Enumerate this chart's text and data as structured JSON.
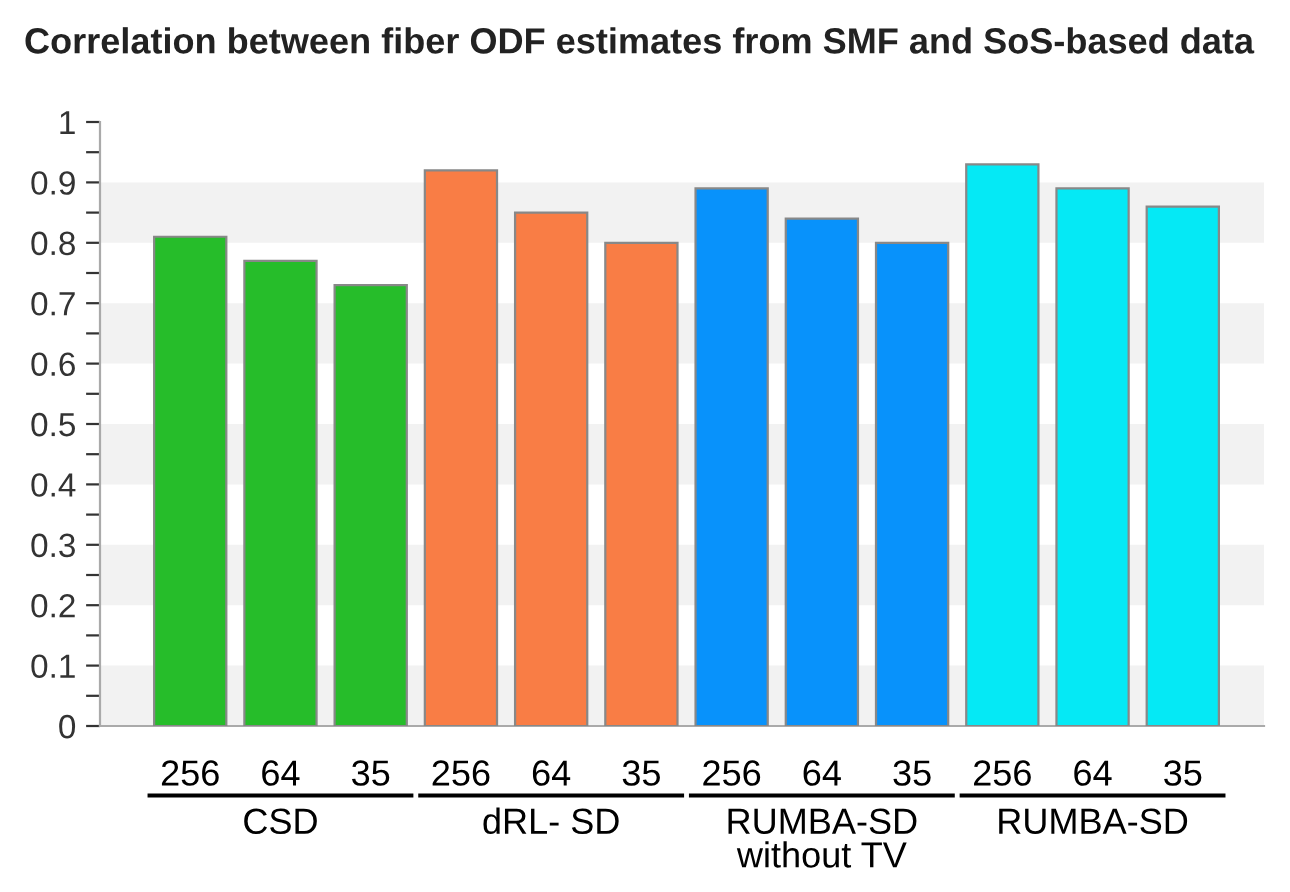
{
  "chart_data": {
    "type": "bar",
    "title": "Correlation between fiber ODF estimates from SMF and SoS-based data",
    "categories": [
      "256",
      "64",
      "35",
      "256",
      "64",
      "35",
      "256",
      "64",
      "35",
      "256",
      "64",
      "35"
    ],
    "values": [
      0.81,
      0.77,
      0.73,
      0.92,
      0.85,
      0.8,
      0.89,
      0.84,
      0.8,
      0.93,
      0.89,
      0.86
    ],
    "colors": [
      "#26bd2a",
      "#26bd2a",
      "#26bd2a",
      "#f97d45",
      "#f97d45",
      "#f97d45",
      "#0892fb",
      "#0892fb",
      "#0892fb",
      "#05e9f5",
      "#05e9f5",
      "#05e9f5"
    ],
    "annotations": [
      "CSD",
      "dRL- SD",
      "RUMBA-SD\nwithout TV",
      "RUMBA-SD"
    ],
    "ylim": [
      0,
      1
    ],
    "yticks": [
      0,
      {
        "value": 0.05,
        "label": null
      },
      0.1,
      {
        "value": 0.15,
        "label": null
      },
      0.2,
      {
        "value": 0.25,
        "label": null
      },
      0.3,
      {
        "value": 0.35,
        "label": null
      },
      0.4,
      {
        "value": 0.45,
        "label": null
      },
      0.5,
      {
        "value": 0.55,
        "label": null
      },
      0.6,
      {
        "value": 0.65,
        "label": null
      },
      0.7,
      {
        "value": 0.75,
        "label": null
      },
      0.8,
      {
        "value": 0.85,
        "label": null
      },
      0.9,
      {
        "value": 0.95,
        "label": null
      },
      1
    ],
    "bands": [
      {
        "axis": "y",
        "from": 0,
        "to": 0.1,
        "color": "#f2f2f2"
      },
      {
        "axis": "y",
        "from": 0.2,
        "to": 0.3,
        "color": "#f2f2f2"
      },
      {
        "axis": "y",
        "from": 0.4,
        "to": 0.5,
        "color": "#f2f2f2"
      },
      {
        "axis": "y",
        "from": 0.6,
        "to": 0.7,
        "color": "#f2f2f2"
      },
      {
        "axis": "y",
        "from": 0.8,
        "to": 0.9,
        "color": "#f2f2f2"
      }
    ]
  }
}
